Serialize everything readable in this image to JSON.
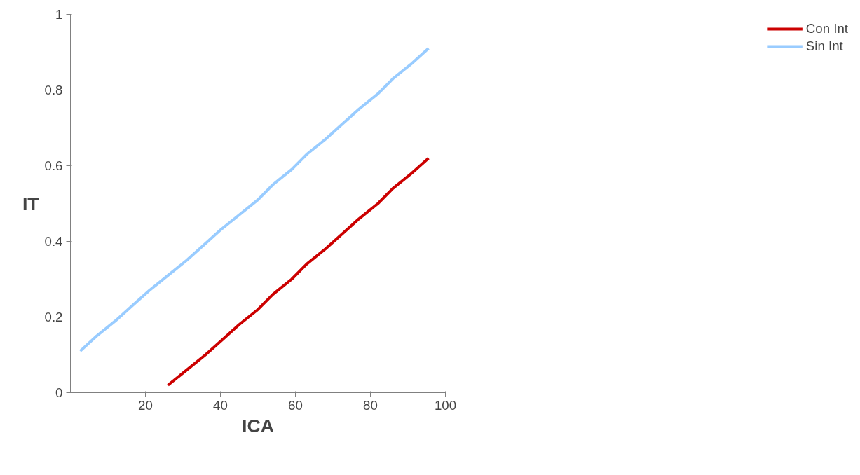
{
  "chart_data": {
    "type": "line",
    "xlabel": "ICA",
    "ylabel": "IT",
    "xlim": [
      0,
      100
    ],
    "ylim": [
      0,
      1
    ],
    "xticks": [
      20,
      40,
      60,
      80,
      100
    ],
    "yticks": [
      0,
      0.2,
      0.4,
      0.6,
      0.8,
      1
    ],
    "grid": false,
    "legend": "right",
    "marker": "none",
    "line_style": "solid",
    "series": [
      {
        "name": "Con Int",
        "color": "#cc0000",
        "x": [
          26,
          31,
          36,
          40.5,
          45,
          50,
          54,
          59,
          63,
          68,
          72.5,
          77,
          82,
          86,
          91,
          95.5
        ],
        "values": [
          0.02,
          0.06,
          0.1,
          0.14,
          0.18,
          0.22,
          0.26,
          0.3,
          0.34,
          0.38,
          0.42,
          0.46,
          0.5,
          0.54,
          0.58,
          0.62
        ]
      },
      {
        "name": "Sin Int",
        "color": "#99ccff",
        "x": [
          2.6,
          7,
          12,
          16.5,
          21,
          26,
          31,
          35.5,
          40,
          45,
          50,
          54,
          59,
          63,
          68,
          72.5,
          77,
          82,
          86,
          91,
          95.5
        ],
        "values": [
          0.11,
          0.15,
          0.19,
          0.23,
          0.27,
          0.31,
          0.35,
          0.39,
          0.43,
          0.47,
          0.51,
          0.55,
          0.59,
          0.63,
          0.67,
          0.71,
          0.75,
          0.79,
          0.83,
          0.87,
          0.91
        ]
      }
    ]
  }
}
